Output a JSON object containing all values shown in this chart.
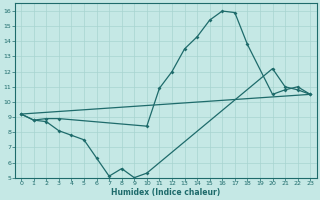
{
  "xlabel": "Humidex (Indice chaleur)",
  "bg_color": "#c5e8e5",
  "grid_color": "#a8d4d0",
  "line_color": "#1e6b6b",
  "xlim": [
    -0.5,
    23.5
  ],
  "ylim": [
    5,
    16.5
  ],
  "yticks": [
    5,
    6,
    7,
    8,
    9,
    10,
    11,
    12,
    13,
    14,
    15,
    16
  ],
  "xticks": [
    0,
    1,
    2,
    3,
    4,
    5,
    6,
    7,
    8,
    9,
    10,
    11,
    12,
    13,
    14,
    15,
    16,
    17,
    18,
    19,
    20,
    21,
    22,
    23
  ],
  "line1_x": [
    0,
    1,
    2,
    3,
    10,
    11,
    12,
    13,
    14,
    15,
    16,
    17,
    18,
    20,
    21,
    22,
    23
  ],
  "line1_y": [
    9.2,
    8.8,
    8.9,
    8.9,
    8.4,
    10.9,
    12.0,
    13.5,
    14.3,
    15.4,
    16.0,
    15.9,
    13.8,
    10.5,
    10.8,
    11.0,
    10.5
  ],
  "line2_x": [
    0,
    1,
    2,
    3,
    4,
    5,
    6,
    7,
    8,
    9,
    10,
    20,
    21,
    22,
    23
  ],
  "line2_y": [
    9.2,
    8.8,
    8.7,
    8.1,
    7.8,
    7.5,
    6.3,
    5.1,
    5.6,
    5.0,
    5.3,
    12.2,
    11.0,
    10.8,
    10.5
  ],
  "line3_x": [
    0,
    23
  ],
  "line3_y": [
    9.2,
    10.5
  ]
}
